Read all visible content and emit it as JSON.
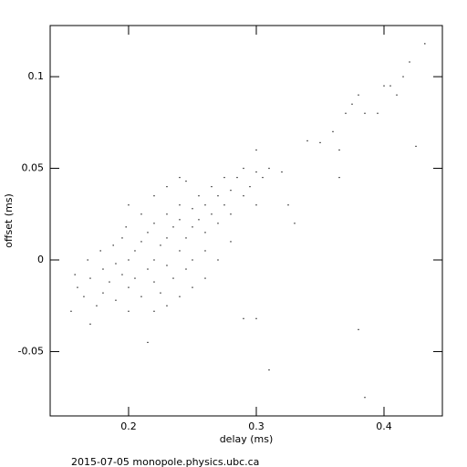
{
  "chart_data": {
    "type": "scatter",
    "xlabel": "delay (ms)",
    "ylabel": "offset (ms)",
    "footer": "2015-07-05  monopole.physics.ubc.ca",
    "color": "#000000",
    "xlim": [
      0.1386,
      0.4457
    ],
    "ylim": [
      -0.0851,
      0.1279
    ],
    "xticks": [
      0.2,
      0.3,
      0.4
    ],
    "yticks": [
      -0.05,
      0,
      0.05,
      0.1
    ],
    "x": [
      0.16,
      0.165,
      0.17,
      0.175,
      0.18,
      0.18,
      0.185,
      0.19,
      0.19,
      0.195,
      0.2,
      0.2,
      0.2,
      0.205,
      0.205,
      0.21,
      0.21,
      0.215,
      0.215,
      0.22,
      0.22,
      0.22,
      0.225,
      0.225,
      0.23,
      0.23,
      0.23,
      0.235,
      0.235,
      0.24,
      0.24,
      0.24,
      0.245,
      0.245,
      0.25,
      0.25,
      0.25,
      0.255,
      0.255,
      0.26,
      0.26,
      0.26,
      0.265,
      0.265,
      0.27,
      0.27,
      0.275,
      0.275,
      0.28,
      0.28,
      0.285,
      0.29,
      0.29,
      0.295,
      0.3,
      0.305,
      0.31,
      0.3,
      0.28,
      0.27,
      0.26,
      0.25,
      0.24,
      0.23,
      0.22,
      0.17,
      0.155,
      0.158,
      0.168,
      0.178,
      0.188,
      0.195,
      0.198,
      0.21,
      0.22,
      0.23,
      0.245,
      0.2,
      0.32,
      0.325,
      0.33,
      0.34,
      0.35,
      0.36,
      0.365,
      0.37,
      0.375,
      0.38,
      0.385,
      0.395,
      0.4,
      0.405,
      0.41,
      0.415,
      0.42,
      0.425,
      0.432,
      0.365,
      0.3,
      0.31,
      0.385,
      0.38,
      0.215,
      0.29,
      0.3,
      0.24
    ],
    "values": [
      -0.015,
      -0.02,
      -0.01,
      -0.025,
      -0.005,
      -0.018,
      -0.012,
      -0.002,
      -0.022,
      -0.008,
      0,
      -0.015,
      -0.028,
      0.005,
      -0.01,
      -0.02,
      0.01,
      -0.005,
      0.015,
      0,
      -0.012,
      0.02,
      0.008,
      -0.018,
      0.012,
      -0.003,
      0.025,
      0.018,
      -0.01,
      0.005,
      0.022,
      0.03,
      0.012,
      -0.005,
      0.018,
      0.028,
      0,
      0.022,
      0.035,
      0.015,
      0.03,
      0.005,
      0.025,
      0.04,
      0.02,
      0.035,
      0.03,
      0.045,
      0.038,
      0.025,
      0.045,
      0.05,
      0.035,
      0.04,
      0.048,
      0.045,
      0.05,
      0.03,
      0.01,
      0,
      -0.01,
      -0.015,
      -0.02,
      -0.025,
      -0.028,
      -0.035,
      -0.028,
      -0.008,
      0,
      0.005,
      0.008,
      0.012,
      0.018,
      0.025,
      0.035,
      0.04,
      0.043,
      0.03,
      0.048,
      0.03,
      0.02,
      0.065,
      0.064,
      0.07,
      0.06,
      0.08,
      0.085,
      0.09,
      0.08,
      0.08,
      0.095,
      0.095,
      0.09,
      0.1,
      0.108,
      0.062,
      0.118,
      0.045,
      0.06,
      -0.06,
      -0.075,
      -0.038,
      -0.045,
      -0.032,
      -0.032,
      0.045
    ]
  }
}
